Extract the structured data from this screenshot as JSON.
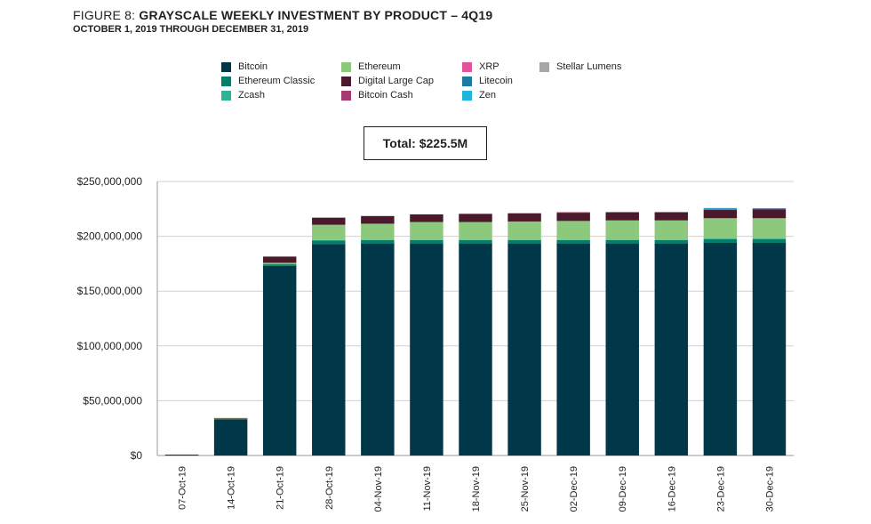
{
  "title": {
    "prefix": "FIGURE 8:",
    "main": "GRAYSCALE WEEKLY INVESTMENT BY PRODUCT – 4Q19",
    "subtitle": "OCTOBER 1, 2019 THROUGH DECEMBER 31, 2019"
  },
  "total_label": "Total: $225.5M",
  "chart_data": {
    "type": "bar",
    "stacked": true,
    "categories": [
      "07-Oct-19",
      "14-Oct-19",
      "21-Oct-19",
      "28-Oct-19",
      "04-Nov-19",
      "11-Nov-19",
      "18-Nov-19",
      "25-Nov-19",
      "02-Dec-19",
      "09-Dec-19",
      "16-Dec-19",
      "23-Dec-19",
      "30-Dec-19"
    ],
    "y_tick_labels": [
      "$0",
      "$50,000,000",
      "$100,000,000",
      "$150,000,000",
      "$200,000,000",
      "$250,000,000"
    ],
    "y_ticks": [
      0,
      50000000,
      100000000,
      150000000,
      200000000,
      250000000
    ],
    "ylim": [
      0,
      250000000
    ],
    "grid": true,
    "legend_position": "top",
    "series": [
      {
        "name": "Bitcoin",
        "color": "#00384a",
        "values": [
          500000,
          33000000,
          173000000,
          193000000,
          193500000,
          193500000,
          193500000,
          193500000,
          193500000,
          193500000,
          193500000,
          194000000,
          194000000
        ]
      },
      {
        "name": "Ethereum Classic",
        "color": "#007f6a",
        "values": [
          0,
          500000,
          1500000,
          3000000,
          3000000,
          3000000,
          3000000,
          3000000,
          3000000,
          3000000,
          3000000,
          3500000,
          3500000
        ]
      },
      {
        "name": "Zcash",
        "color": "#2bb596",
        "values": [
          0,
          0,
          300000,
          500000,
          500000,
          500000,
          500000,
          500000,
          500000,
          500000,
          500000,
          500000,
          500000
        ]
      },
      {
        "name": "Ethereum",
        "color": "#8cc97c",
        "values": [
          0,
          200000,
          1000000,
          14000000,
          14500000,
          16000000,
          16000000,
          16500000,
          17000000,
          17500000,
          17500000,
          18500000,
          18500000
        ]
      },
      {
        "name": "Digital Large Cap",
        "color": "#4a1a2c",
        "values": [
          300000,
          500000,
          5700000,
          6500000,
          7000000,
          7000000,
          7500000,
          7500000,
          7500000,
          7500000,
          7500000,
          7500000,
          8000000
        ]
      },
      {
        "name": "Bitcoin Cash",
        "color": "#a53a6e",
        "values": [
          0,
          0,
          0,
          0,
          0,
          0,
          0,
          0,
          500000,
          0,
          0,
          500000,
          700000
        ]
      },
      {
        "name": "XRP",
        "color": "#e0529c",
        "values": [
          0,
          0,
          0,
          0,
          0,
          0,
          0,
          0,
          0,
          0,
          0,
          300000,
          200000
        ]
      },
      {
        "name": "Litecoin",
        "color": "#1d7aa3",
        "values": [
          0,
          0,
          0,
          0,
          0,
          0,
          0,
          0,
          0,
          0,
          0,
          500000,
          100000
        ]
      },
      {
        "name": "Zen",
        "color": "#1fb5e0",
        "values": [
          0,
          0,
          0,
          0,
          0,
          0,
          0,
          0,
          0,
          0,
          0,
          500000,
          0
        ]
      },
      {
        "name": "Stellar Lumens",
        "color": "#a6a6a6",
        "values": [
          0,
          0,
          0,
          0,
          0,
          0,
          0,
          0,
          0,
          0,
          0,
          0,
          0
        ]
      }
    ]
  }
}
